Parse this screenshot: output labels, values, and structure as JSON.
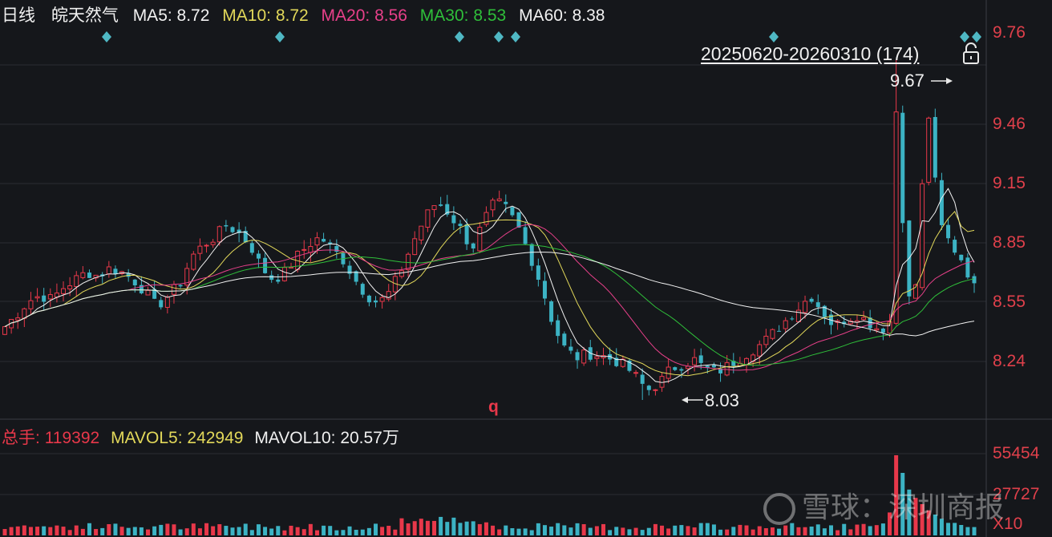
{
  "header": {
    "period": "日线",
    "stock_name": "皖天然气",
    "ma": [
      {
        "label": "MA5:",
        "value": "8.72",
        "color": "#f2f2f2"
      },
      {
        "label": "MA10:",
        "value": "8.72",
        "color": "#e2d85a"
      },
      {
        "label": "MA20:",
        "value": "8.56",
        "color": "#e8408a"
      },
      {
        "label": "MA30:",
        "value": "8.53",
        "color": "#2fbf3a"
      },
      {
        "label": "MA60:",
        "value": "8.38",
        "color": "#f2f2f2"
      }
    ]
  },
  "range_label": "20250620-20260310 (174)",
  "price_axis": {
    "ticks": [
      "9.76",
      "9.46",
      "9.15",
      "8.85",
      "8.55",
      "8.24"
    ],
    "color": "#e0404b"
  },
  "annotations": {
    "high_label": "9.67",
    "low_label": "8.03",
    "marker": "q"
  },
  "volume_header": {
    "total_label": "总手:",
    "total_value": "119392",
    "mavol5_label": "MAVOL5:",
    "mavol5_value": "242949",
    "mavol10_label": "MAVOL10:",
    "mavol10_value": "20.57万"
  },
  "volume_axis": {
    "ticks": [
      "55454",
      "27727",
      "X10"
    ]
  },
  "watermark": "雪球：深圳商报",
  "colors": {
    "up": "#e8384a",
    "down": "#3cb3c4",
    "background": "#15171b",
    "grid": "#2a2d33"
  },
  "chart_data": {
    "type": "candlestick",
    "ylim": [
      8.0,
      9.85
    ],
    "price_ticks": [
      9.76,
      9.46,
      9.15,
      8.85,
      8.55,
      8.24
    ],
    "high": 9.67,
    "low": 8.03,
    "close_series": [
      8.42,
      8.48,
      8.55,
      8.58,
      8.56,
      8.62,
      8.66,
      8.7,
      8.68,
      8.72,
      8.7,
      8.66,
      8.6,
      8.52,
      8.58,
      8.64,
      8.78,
      8.84,
      8.88,
      8.94,
      8.9,
      8.84,
      8.72,
      8.66,
      8.7,
      8.78,
      8.84,
      8.88,
      8.82,
      8.76,
      8.66,
      8.58,
      8.54,
      8.6,
      8.72,
      8.86,
      8.98,
      9.06,
      9.0,
      8.92,
      8.82,
      8.96,
      9.06,
      9.02,
      8.92,
      8.78,
      8.62,
      8.42,
      8.3,
      8.26,
      8.28,
      8.27,
      8.25,
      8.22,
      8.16,
      8.08,
      8.12,
      8.2,
      8.22,
      8.25,
      8.2,
      8.18,
      8.22,
      8.26,
      8.3,
      8.34,
      8.4,
      8.46,
      8.52,
      8.58,
      8.5,
      8.42,
      8.46,
      8.48,
      8.44,
      8.4,
      8.46,
      8.5,
      8.64,
      9.55,
      8.95,
      8.84,
      8.76,
      8.62
    ],
    "volume_scale_ticks": [
      55454,
      27727
    ]
  }
}
